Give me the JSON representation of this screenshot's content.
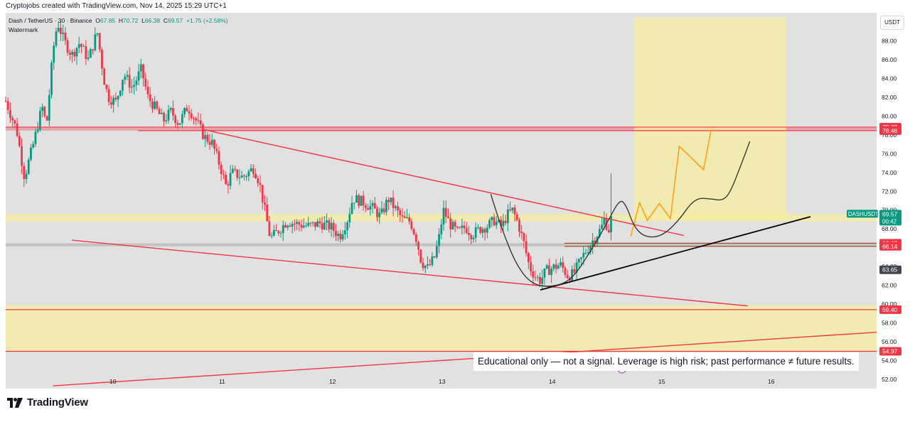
{
  "header": {
    "caption": "Cryptojobs created with TradingView.com, Nov 14, 2025 15:29 UTC+1",
    "symbol": "Dash / TetherUS · 30 · Binance",
    "ohlc": {
      "o_label": "O",
      "o": "67.85",
      "h_label": "H",
      "h": "70.72",
      "l_label": "L",
      "l": "66.38",
      "c_label": "C",
      "c": "69.57",
      "change": "+1.75 (+2.58%)"
    },
    "watermark": "Watermark",
    "currency_button": "USDT"
  },
  "disclaimer": "Educational only — not a signal. Leverage is high risk; past performance ≠ future results.",
  "brand": "TradingView",
  "colors": {
    "background": "#e1e1e1",
    "bull": "#089981",
    "bear": "#f23645",
    "resistance": "#f23645",
    "zone_yellow": "#f5eea0",
    "projection": "#ff9f1a",
    "trend_black": "#000000"
  },
  "chart_data": {
    "type": "candlestick",
    "symbol": "DASHUSDT",
    "timeframe": "30",
    "x_ticks": [
      "10",
      "11",
      "12",
      "13",
      "14",
      "15",
      "16"
    ],
    "y_ticks": [
      "52.00",
      "54.00",
      "56.00",
      "58.00",
      "60.00",
      "62.00",
      "64.00",
      "66.00",
      "68.00",
      "70.00",
      "72.00",
      "74.00",
      "76.00",
      "78.00",
      "80.00",
      "82.00",
      "84.00",
      "86.00",
      "88.00"
    ],
    "ylim": [
      51,
      91
    ],
    "xlim": [
      9.05,
      16.95
    ],
    "price_labels": [
      {
        "value": 78.83,
        "text": "78.83",
        "color": "#f23645"
      },
      {
        "value": 78.46,
        "text": "78.46",
        "color": "#f23645"
      },
      {
        "value": 69.57,
        "text": "69.57",
        "sub": "00:42",
        "color": "#089981",
        "tag": "DASHUSDT"
      },
      {
        "value": 66.47,
        "text": "66.47",
        "color": "#f23645"
      },
      {
        "value": 66.14,
        "text": "66.14",
        "color": "#f23645"
      },
      {
        "value": 63.65,
        "text": "63.65",
        "color": "#434651"
      },
      {
        "value": 59.4,
        "text": "59.40",
        "color": "#f23645"
      },
      {
        "value": 54.97,
        "text": "54.97",
        "color": "#f23645"
      }
    ],
    "path": [
      [
        9.05,
        81.6
      ],
      [
        9.15,
        78.5
      ],
      [
        9.22,
        73.5
      ],
      [
        9.3,
        77
      ],
      [
        9.38,
        81
      ],
      [
        9.42,
        79
      ],
      [
        9.48,
        87
      ],
      [
        9.52,
        90
      ],
      [
        9.58,
        88
      ],
      [
        9.65,
        86.5
      ],
      [
        9.72,
        87.8
      ],
      [
        9.8,
        86
      ],
      [
        9.88,
        89
      ],
      [
        9.94,
        84
      ],
      [
        9.98,
        82
      ],
      [
        10.05,
        81.5
      ],
      [
        10.12,
        84.5
      ],
      [
        10.2,
        83
      ],
      [
        10.28,
        85
      ],
      [
        10.34,
        82
      ],
      [
        10.4,
        81
      ],
      [
        10.48,
        79.5
      ],
      [
        10.55,
        80.5
      ],
      [
        10.62,
        79.2
      ],
      [
        10.7,
        81
      ],
      [
        10.78,
        79.5
      ],
      [
        10.85,
        77.8
      ],
      [
        10.92,
        77.2
      ],
      [
        11.0,
        74.5
      ],
      [
        11.05,
        72.5
      ],
      [
        11.1,
        74
      ],
      [
        11.2,
        73.5
      ],
      [
        11.3,
        74.5
      ],
      [
        11.35,
        73
      ],
      [
        11.4,
        70
      ],
      [
        11.45,
        67
      ],
      [
        11.5,
        67.5
      ],
      [
        11.6,
        68.8
      ],
      [
        11.7,
        68.5
      ],
      [
        11.8,
        68.3
      ],
      [
        11.9,
        68.6
      ],
      [
        12.0,
        68.2
      ],
      [
        12.08,
        67.2
      ],
      [
        12.15,
        69
      ],
      [
        12.2,
        71.3
      ],
      [
        12.3,
        70.8
      ],
      [
        12.38,
        70.2
      ],
      [
        12.45,
        69.3
      ],
      [
        12.52,
        71.2
      ],
      [
        12.58,
        70.2
      ],
      [
        12.65,
        69
      ],
      [
        12.72,
        68.8
      ],
      [
        12.78,
        66.8
      ],
      [
        12.82,
        64.5
      ],
      [
        12.88,
        63.8
      ],
      [
        12.94,
        65
      ],
      [
        12.98,
        67
      ],
      [
        13.02,
        70
      ],
      [
        13.08,
        68.5
      ],
      [
        13.15,
        67.6
      ],
      [
        13.22,
        68.2
      ],
      [
        13.28,
        67.4
      ],
      [
        13.35,
        68
      ],
      [
        13.42,
        68.3
      ],
      [
        13.48,
        68.9
      ],
      [
        13.55,
        68.2
      ],
      [
        13.6,
        69.5
      ],
      [
        13.65,
        70
      ],
      [
        13.7,
        68.5
      ],
      [
        13.75,
        66.5
      ],
      [
        13.8,
        64
      ],
      [
        13.85,
        63
      ],
      [
        13.9,
        62.5
      ],
      [
        13.95,
        63.5
      ],
      [
        14.0,
        63.8
      ],
      [
        14.08,
        64.2
      ],
      [
        14.15,
        63
      ],
      [
        14.2,
        63.2
      ],
      [
        14.25,
        64.3
      ],
      [
        14.3,
        65.4
      ],
      [
        14.35,
        66.3
      ],
      [
        14.4,
        67.2
      ],
      [
        14.45,
        68
      ],
      [
        14.48,
        69
      ],
      [
        14.52,
        67.9
      ],
      [
        14.55,
        69.57
      ]
    ],
    "zones": [
      {
        "from_price": 78.83,
        "to_price": 78.46,
        "color": "#f23645"
      },
      {
        "from_price": 69.6,
        "to_price": 68.8,
        "color": "#f5eea0"
      },
      {
        "from_price": 59.9,
        "to_price": 54.97,
        "color": "#f5eea0"
      },
      {
        "from_price": 66.47,
        "to_price": 66.14,
        "color": "#a5a5a5"
      }
    ],
    "target_box": {
      "x_from": 14.75,
      "x_to": 16.13,
      "y_from": 69.0,
      "y_to": 90.5
    },
    "horizontal_lines": [
      {
        "value": 78.83,
        "x_from": 9.0,
        "x_to": 16.95,
        "color": "#f23645"
      },
      {
        "value": 78.46,
        "x_from": 10.25,
        "x_to": 16.95,
        "color": "#f23645"
      },
      {
        "value": 59.4,
        "x_from": 9.0,
        "x_to": 16.95,
        "color": "#f23645"
      },
      {
        "value": 54.97,
        "x_from": 9.0,
        "x_to": 16.95,
        "color": "#f23645"
      },
      {
        "value": 66.47,
        "x_from": 14.12,
        "x_to": 16.95,
        "color": "#a0522d"
      },
      {
        "value": 66.14,
        "x_from": 14.12,
        "x_to": 16.95,
        "color": "#a0522d"
      }
    ],
    "trendlines": [
      {
        "from": [
          10.83,
          78.6
        ],
        "to": [
          15.2,
          67.3
        ],
        "color": "#f23645"
      },
      {
        "from": [
          9.65,
          66.8
        ],
        "to": [
          15.78,
          59.8
        ],
        "color": "#f23645"
      },
      {
        "from": [
          9.48,
          51.3
        ],
        "to": [
          16.95,
          57.0
        ],
        "color": "#f23645"
      },
      {
        "from": [
          13.9,
          61.5
        ],
        "to": [
          16.35,
          69.3
        ],
        "color": "#000000"
      }
    ],
    "projection_orange": [
      [
        14.72,
        67.2
      ],
      [
        14.8,
        70.8
      ],
      [
        14.87,
        68.9
      ],
      [
        14.98,
        70.7
      ],
      [
        15.08,
        69.1
      ],
      [
        15.16,
        76.8
      ],
      [
        15.38,
        74.3
      ],
      [
        15.45,
        78.6
      ]
    ],
    "projection_curve": [
      [
        13.45,
        71.7
      ],
      [
        13.55,
        68
      ],
      [
        13.68,
        64.2
      ],
      [
        13.82,
        62.1
      ],
      [
        14.0,
        61.8
      ],
      [
        14.18,
        62.5
      ],
      [
        14.35,
        65.5
      ],
      [
        14.5,
        68.5
      ],
      [
        14.62,
        71.2
      ],
      [
        14.68,
        70.5
      ],
      [
        14.75,
        68.2
      ],
      [
        14.85,
        67.1
      ],
      [
        15.0,
        67.2
      ],
      [
        15.15,
        68.8
      ],
      [
        15.3,
        71.3
      ],
      [
        15.45,
        71.2
      ],
      [
        15.55,
        71
      ],
      [
        15.62,
        71.8
      ],
      [
        15.72,
        74.8
      ],
      [
        15.8,
        77.3
      ]
    ]
  }
}
